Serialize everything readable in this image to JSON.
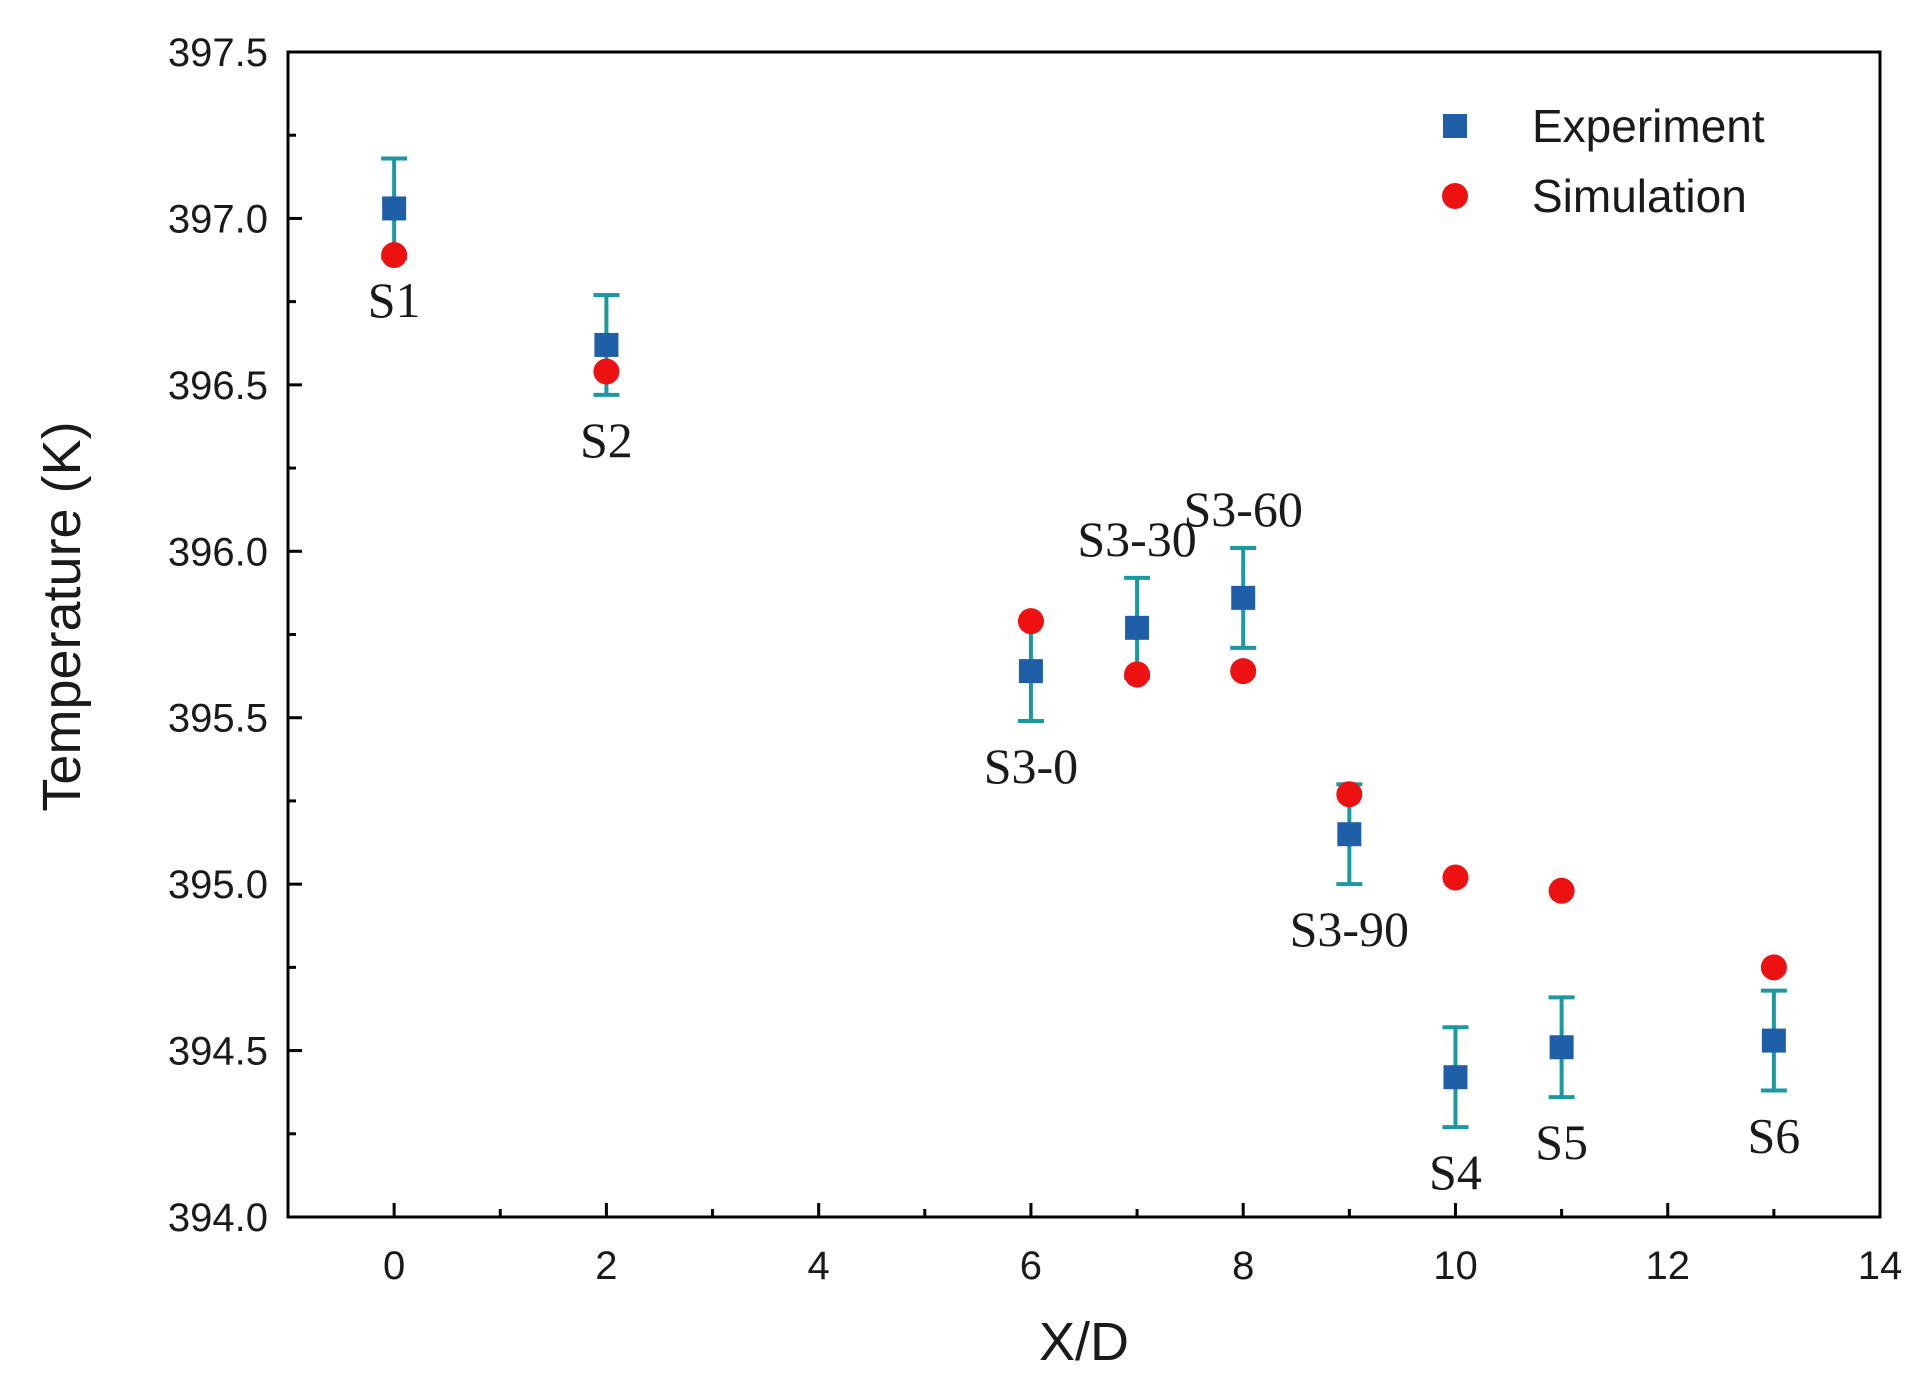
{
  "chart_data": {
    "type": "scatter",
    "xlabel": "X/D",
    "ylabel": "Temperature (K)",
    "xlim": [
      -1,
      14
    ],
    "ylim": [
      394.0,
      397.5
    ],
    "xticks": [
      0,
      2,
      4,
      6,
      8,
      10,
      12,
      14
    ],
    "yticks": [
      394.0,
      394.5,
      395.0,
      395.5,
      396.0,
      396.5,
      397.0,
      397.5
    ],
    "x_minor_ticks": [
      -1,
      1,
      3,
      5,
      7,
      9,
      11,
      13
    ],
    "legend_position": "top-right",
    "series": [
      {
        "name": "Experiment",
        "marker": "square",
        "color": "#1f5fa8",
        "errorbar_color": "#1a9aa0",
        "x": [
          0,
          2,
          6,
          7,
          8,
          9,
          10,
          11,
          13
        ],
        "y": [
          397.03,
          396.62,
          395.64,
          395.77,
          395.86,
          395.15,
          394.42,
          394.51,
          394.53
        ],
        "error": [
          0.15,
          0.15,
          0.15,
          0.15,
          0.15,
          0.15,
          0.15,
          0.15,
          0.15
        ]
      },
      {
        "name": "Simulation",
        "marker": "circle",
        "color": "#ee1111",
        "x": [
          0,
          2,
          6,
          7,
          8,
          9,
          10,
          11,
          13
        ],
        "y": [
          396.89,
          396.54,
          395.79,
          395.63,
          395.64,
          395.27,
          395.02,
          394.98,
          394.75
        ]
      }
    ],
    "annotations": [
      {
        "text": "S1",
        "x": 0,
        "y": 396.89,
        "pos": "below"
      },
      {
        "text": "S2",
        "x": 2,
        "y": 396.47,
        "pos": "below"
      },
      {
        "text": "S3-0",
        "x": 6,
        "y": 395.49,
        "pos": "below"
      },
      {
        "text": "S3-30",
        "x": 7,
        "y": 395.92,
        "pos": "above"
      },
      {
        "text": "S3-60",
        "x": 8,
        "y": 396.01,
        "pos": "above"
      },
      {
        "text": "S3-90",
        "x": 9,
        "y": 395.0,
        "pos": "below"
      },
      {
        "text": "S4",
        "x": 10,
        "y": 394.27,
        "pos": "below"
      },
      {
        "text": "S5",
        "x": 11,
        "y": 394.36,
        "pos": "below"
      },
      {
        "text": "S6",
        "x": 13,
        "y": 394.38,
        "pos": "below"
      }
    ]
  }
}
